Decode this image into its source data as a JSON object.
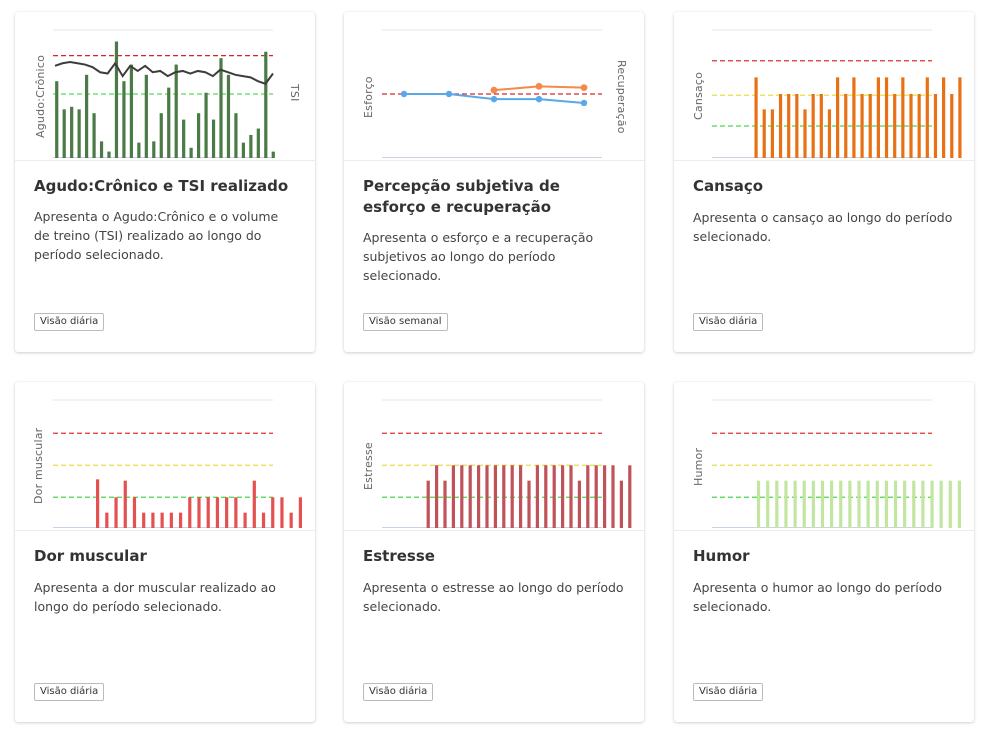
{
  "cards": [
    {
      "title": "Agudo:Crônico e TSI realizado",
      "description": "Apresenta o Agudo:Crônico e o volume de treino (TSI) realizado ao longo do período selecionado.",
      "badge": "Visão diária",
      "y_label": "Agudo:Crônico",
      "y2_label": "TSI"
    },
    {
      "title": "Percepção subjetiva de esforço e recuperação",
      "description": "Apresenta o esforço e a recuperação subjetivos ao longo do período selecionado.",
      "badge": "Visão semanal",
      "y_label": "Esforço",
      "y2_label": "Recuperação"
    },
    {
      "title": "Cansaço",
      "description": "Apresenta o cansaço ao longo do período selecionado.",
      "badge": "Visão diária",
      "y_label": "Cansaço"
    },
    {
      "title": "Dor muscular",
      "description": "Apresenta a dor muscular realizado ao longo do período selecionado.",
      "badge": "Visão diária",
      "y_label": "Dor muscular"
    },
    {
      "title": "Estresse",
      "description": "Apresenta o estresse ao longo do período selecionado.",
      "badge": "Visão diária",
      "y_label": "Estresse"
    },
    {
      "title": "Humor",
      "description": "Apresenta o humor ao longo do período selecionado.",
      "badge": "Visão diária",
      "y_label": "Humor"
    }
  ],
  "chart_data": [
    {
      "type": "bar",
      "ylabel": "Agudo:Crônico",
      "y2label": "TSI",
      "ylim": [
        0,
        1
      ],
      "bar_color": "#4a7a45",
      "line_color": "#3d3d3d",
      "reference_lines": [
        {
          "value": 0.8,
          "color": "#d62728"
        },
        {
          "value": 0.5,
          "color": "#5ad65a"
        }
      ],
      "series": [
        {
          "type": "bar",
          "values": [
            0.6,
            0.38,
            0.4,
            0.38,
            0.65,
            0.35,
            0.13,
            0.05,
            0.91,
            0.6,
            0.73,
            0.12,
            0.65,
            0.13,
            0.35,
            0.55,
            0.73,
            0.3,
            0.08,
            0.35,
            0.51,
            0.3,
            0.78,
            0.65,
            0.35,
            0.12,
            0.18,
            0.23,
            0.83,
            0.05
          ]
        },
        {
          "type": "line",
          "values": [
            0.72,
            0.74,
            0.75,
            0.74,
            0.73,
            0.71,
            0.67,
            0.66,
            0.74,
            0.64,
            0.72,
            0.68,
            0.72,
            0.67,
            0.68,
            0.64,
            0.67,
            0.68,
            0.66,
            0.68,
            0.67,
            0.64,
            0.69,
            0.67,
            0.65,
            0.64,
            0.63,
            0.6,
            0.58,
            0.66
          ]
        }
      ]
    },
    {
      "type": "line",
      "ylabel": "Esforço",
      "y2label": "Recuperação",
      "ylim": [
        0,
        1
      ],
      "reference_lines": [
        {
          "value": 0.5,
          "color": "#d62728"
        }
      ],
      "series": [
        {
          "color": "#5aa8e8",
          "values": [
            0.5,
            0.5,
            0.46,
            0.46,
            0.43
          ]
        },
        {
          "color": "#f4894a",
          "values": [
            null,
            null,
            0.53,
            0.56,
            0.55
          ]
        }
      ]
    },
    {
      "type": "bar",
      "ylabel": "Cansaço",
      "ylim": [
        0,
        1
      ],
      "bar_color": "#e87116",
      "reference_lines": [
        {
          "value": 0.76,
          "color": "#e03030"
        },
        {
          "value": 0.49,
          "color": "#e6e04a"
        },
        {
          "value": 0.25,
          "color": "#4ad64a"
        }
      ],
      "values": [
        0.63,
        0.38,
        0.38,
        0.5,
        0.5,
        0.5,
        0.38,
        0.5,
        0.5,
        0.38,
        0.63,
        0.5,
        0.63,
        0.5,
        0.5,
        0.63,
        0.63,
        0.5,
        0.63,
        0.5,
        0.5,
        0.63,
        0.5,
        0.63,
        0.5,
        0.63
      ]
    },
    {
      "type": "bar",
      "ylabel": "Dor muscular",
      "ylim": [
        0,
        1
      ],
      "bar_color": "#e55050",
      "reference_lines": [
        {
          "value": 0.74,
          "color": "#e03030"
        },
        {
          "value": 0.49,
          "color": "#e6e04a"
        },
        {
          "value": 0.24,
          "color": "#4ad64a"
        }
      ],
      "values": [
        0.38,
        0.12,
        0.24,
        0.37,
        0.24,
        0.12,
        0.12,
        0.12,
        0.12,
        0.12,
        0.24,
        0.24,
        0.24,
        0.24,
        0.24,
        0.24,
        0.12,
        0.37,
        0.12,
        0.24,
        0.24,
        0.12,
        0.24
      ]
    },
    {
      "type": "bar",
      "ylabel": "Estresse",
      "ylim": [
        0,
        1
      ],
      "bar_color": "#c0525a",
      "reference_lines": [
        {
          "value": 0.74,
          "color": "#e03030"
        },
        {
          "value": 0.49,
          "color": "#e6e04a"
        },
        {
          "value": 0.24,
          "color": "#4ad64a"
        }
      ],
      "values": [
        0.37,
        0.49,
        0.37,
        0.49,
        0.49,
        0.49,
        0.49,
        0.49,
        0.49,
        0.49,
        0.49,
        0.49,
        0.37,
        0.49,
        0.49,
        0.49,
        0.49,
        0.49,
        0.37,
        0.49,
        0.49,
        0.49,
        0.49,
        0.37,
        0.49
      ]
    },
    {
      "type": "bar",
      "ylabel": "Humor",
      "ylim": [
        0,
        1
      ],
      "bar_color": "#c2e6a0",
      "reference_lines": [
        {
          "value": 0.74,
          "color": "#e03030"
        },
        {
          "value": 0.49,
          "color": "#e6e04a"
        },
        {
          "value": 0.24,
          "color": "#4ad64a"
        }
      ],
      "values": [
        0.37,
        0.37,
        0.37,
        0.37,
        0.37,
        0.37,
        0.37,
        0.37,
        0.37,
        0.37,
        0.37,
        0.37,
        0.37,
        0.37,
        0.37,
        0.37,
        0.37,
        0.37,
        0.37,
        0.37,
        0.37,
        0.37,
        0.37
      ]
    }
  ]
}
